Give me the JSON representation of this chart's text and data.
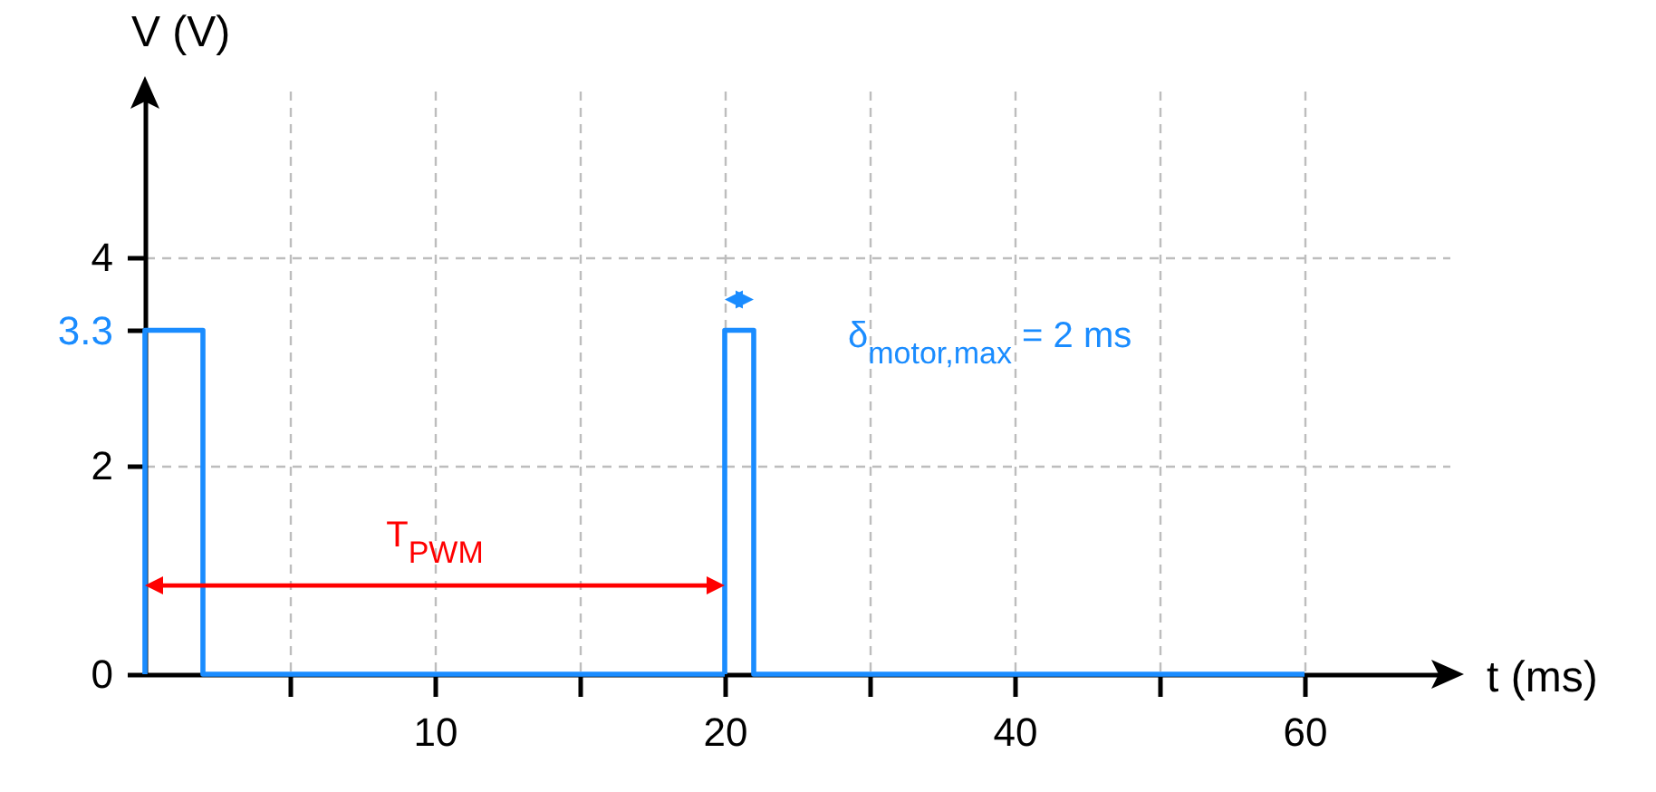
{
  "chart_data": [
    {
      "type": "line",
      "ylabel": "V (V)",
      "xlim": [
        0,
        20
      ],
      "ylim": [
        0,
        5.6
      ],
      "xticks": [
        {
          "value": 5,
          "label": null
        },
        10,
        {
          "value": 15,
          "label": null
        },
        20
      ],
      "yticks": [
        0,
        2,
        3.3,
        4
      ],
      "grid": true,
      "series": [
        {
          "color": "#1a8cff",
          "x": [
            0,
            0,
            2,
            2,
            20
          ],
          "values": [
            0,
            3.3,
            3.3,
            0,
            0
          ]
        }
      ],
      "annotations": [
        "T$_{PWM}$"
      ]
    },
    {
      "type": "line",
      "xlabel": "t  (ms)",
      "xlim": [
        20,
        70
      ],
      "ylim": [
        0,
        5.6
      ],
      "xticks": [
        {
          "value": 30,
          "label": null
        },
        40,
        {
          "value": 50,
          "label": null
        },
        60
      ],
      "yticks": [
        0,
        2,
        3.3,
        4
      ],
      "grid": true,
      "tick_labels": "x",
      "series": [
        {
          "color": "#1a8cff",
          "x": [
            20,
            20,
            22,
            22,
            60
          ],
          "values": [
            0,
            3.3,
            3.3,
            0,
            0
          ]
        }
      ],
      "annotations": [
        "δ$_{motor,max}$ = 2 ms"
      ]
    }
  ]
}
